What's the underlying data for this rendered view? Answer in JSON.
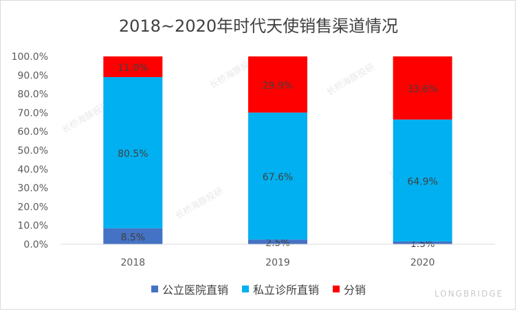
{
  "chart_data": {
    "type": "bar",
    "stacked": true,
    "title": "2018~2020年时代天使销售渠道情况",
    "categories": [
      "2018",
      "2019",
      "2020"
    ],
    "series": [
      {
        "name": "公立医院直销",
        "color": "#4472c4",
        "values": [
          8.5,
          2.5,
          1.5
        ],
        "labels": [
          "8.5%",
          "2.5%",
          "1.5%"
        ]
      },
      {
        "name": "私立诊所直销",
        "color": "#00b0f0",
        "values": [
          80.5,
          67.6,
          64.9
        ],
        "labels": [
          "80.5%",
          "67.6%",
          "64.9%"
        ]
      },
      {
        "name": "分销",
        "color": "#ff0000",
        "values": [
          11.0,
          29.9,
          33.6
        ],
        "labels": [
          "11.0%",
          "29.9%",
          "33.6%"
        ]
      }
    ],
    "ylim": [
      0,
      100
    ],
    "yticks": [
      "0.0%",
      "10.0%",
      "20.0%",
      "30.0%",
      "40.0%",
      "50.0%",
      "60.0%",
      "70.0%",
      "80.0%",
      "90.0%",
      "100.0%"
    ],
    "grid": false,
    "legend_position": "bottom"
  },
  "watermark_text": "长桥海豚投研",
  "brand_text": "LONGBRIDGE"
}
